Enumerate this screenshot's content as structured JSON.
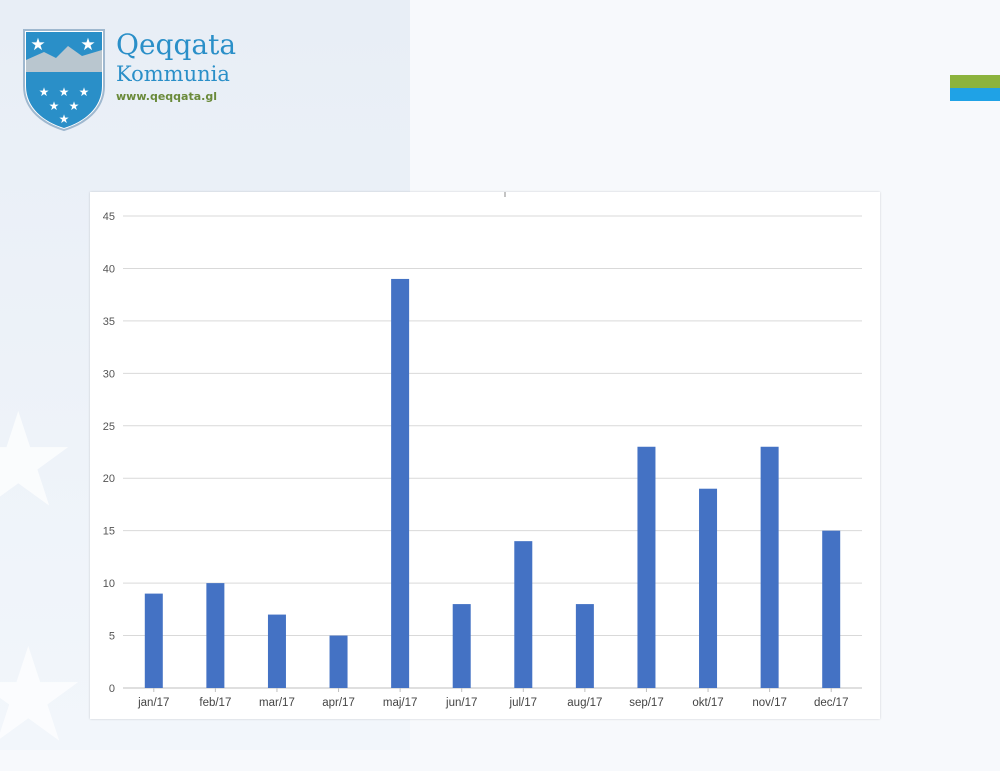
{
  "branding": {
    "name": "Qeqqata",
    "subname": "Kommunia",
    "url": "www.qeqqata.gl"
  },
  "colors": {
    "bar": "#4472c4",
    "logo_blue": "#2a8fc8",
    "logo_green": "#6a8a3a",
    "flag_green": "#8cb33d",
    "flag_blue": "#1fa2e6"
  },
  "chart_data": {
    "type": "bar",
    "categories": [
      "jan/17",
      "feb/17",
      "mar/17",
      "apr/17",
      "maj/17",
      "jun/17",
      "jul/17",
      "aug/17",
      "sep/17",
      "okt/17",
      "nov/17",
      "dec/17"
    ],
    "values": [
      9,
      10,
      7,
      5,
      39,
      8,
      14,
      8,
      23,
      19,
      23,
      15
    ],
    "ylim": [
      0,
      45
    ],
    "yticks": [
      0,
      5,
      10,
      15,
      20,
      25,
      30,
      35,
      40,
      45
    ],
    "grid": true,
    "legend": "none"
  }
}
